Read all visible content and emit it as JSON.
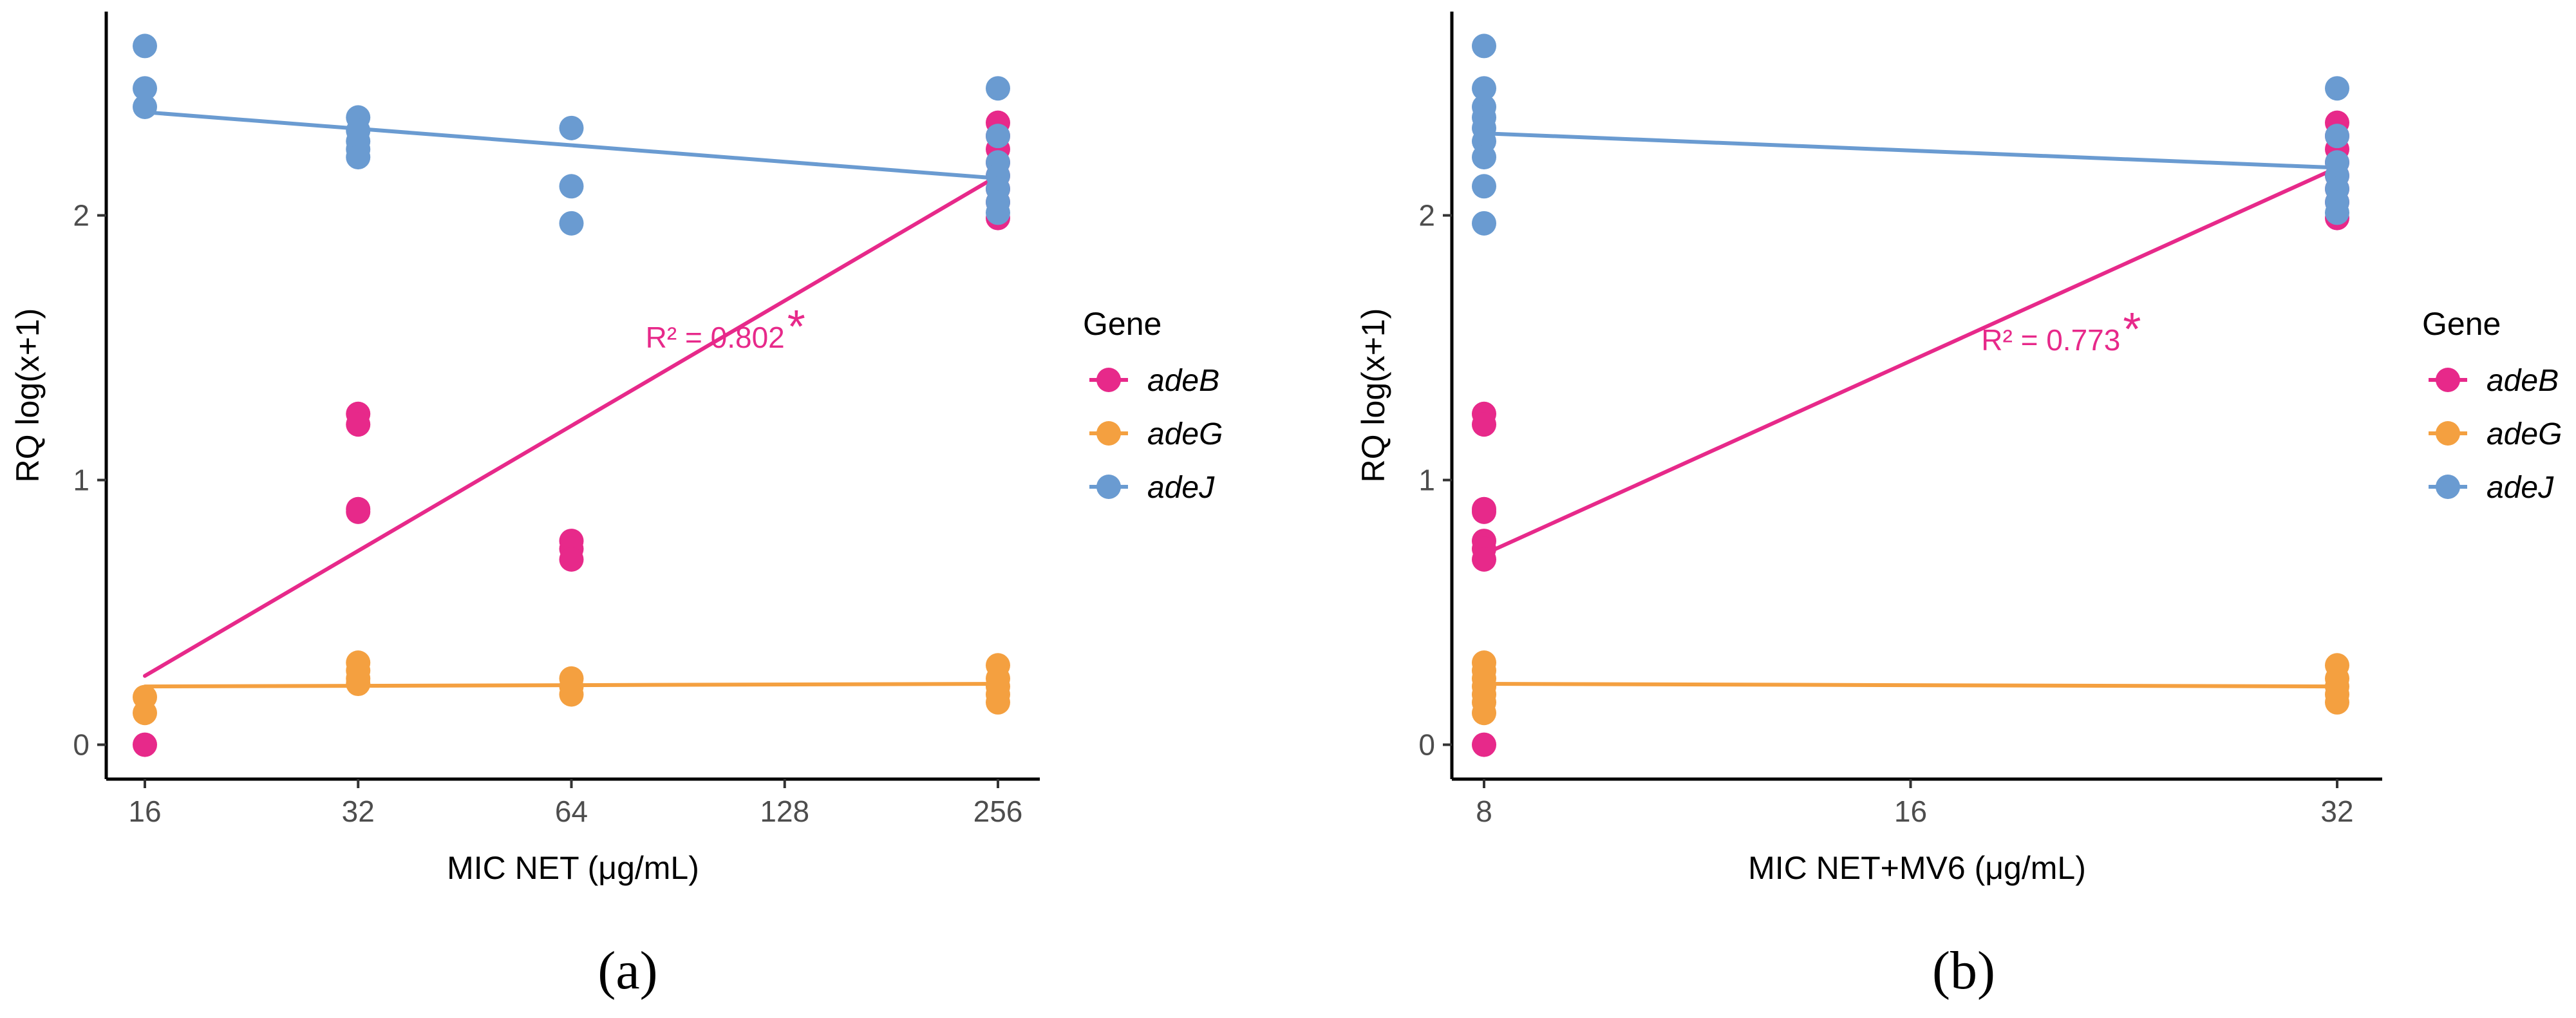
{
  "chart_data": [
    {
      "type": "scatter",
      "panel_label": "(a)",
      "xlabel": "MIC NET (μg/mL)",
      "ylabel": "RQ log(x+1)",
      "x_scale": "log2",
      "xlim": [
        16,
        256
      ],
      "xticks": [
        "16",
        "32",
        "64",
        "128",
        "256"
      ],
      "xtick_values": [
        16,
        32,
        64,
        128,
        256
      ],
      "ylim": [
        -0.13,
        2.77
      ],
      "yticks": [
        "0",
        "1",
        "2"
      ],
      "ytick_values": [
        0,
        1,
        2
      ],
      "legend_title": "Gene",
      "series": [
        {
          "name": "adeB",
          "color": "#E7298A",
          "points": [
            [
              16,
              0.0
            ],
            [
              32,
              1.25
            ],
            [
              32,
              1.21
            ],
            [
              32,
              0.89
            ],
            [
              32,
              0.88
            ],
            [
              64,
              0.77
            ],
            [
              64,
              0.74
            ],
            [
              64,
              0.7
            ],
            [
              256,
              2.35
            ],
            [
              256,
              2.3
            ],
            [
              256,
              2.25
            ],
            [
              256,
              2.2
            ],
            [
              256,
              2.15
            ],
            [
              256,
              2.1
            ],
            [
              256,
              2.05
            ],
            [
              256,
              1.99
            ]
          ],
          "fit": [
            [
              16,
              0.26
            ],
            [
              256,
              2.15
            ]
          ]
        },
        {
          "name": "adeG",
          "color": "#F4A040",
          "points": [
            [
              16,
              0.18
            ],
            [
              16,
              0.12
            ],
            [
              32,
              0.31
            ],
            [
              32,
              0.28
            ],
            [
              32,
              0.25
            ],
            [
              32,
              0.23
            ],
            [
              64,
              0.25
            ],
            [
              64,
              0.22
            ],
            [
              64,
              0.19
            ],
            [
              256,
              0.3
            ],
            [
              256,
              0.25
            ],
            [
              256,
              0.22
            ],
            [
              256,
              0.19
            ],
            [
              256,
              0.16
            ]
          ],
          "fit": [
            [
              16,
              0.22
            ],
            [
              256,
              0.23
            ]
          ]
        },
        {
          "name": "adeJ",
          "color": "#6A9BD1",
          "points": [
            [
              16,
              2.64
            ],
            [
              16,
              2.48
            ],
            [
              16,
              2.41
            ],
            [
              32,
              2.37
            ],
            [
              32,
              2.32
            ],
            [
              32,
              2.28
            ],
            [
              32,
              2.25
            ],
            [
              32,
              2.22
            ],
            [
              64,
              2.33
            ],
            [
              64,
              2.11
            ],
            [
              64,
              1.97
            ],
            [
              256,
              2.48
            ],
            [
              256,
              2.3
            ],
            [
              256,
              2.2
            ],
            [
              256,
              2.15
            ],
            [
              256,
              2.1
            ],
            [
              256,
              2.05
            ],
            [
              256,
              2.01
            ]
          ],
          "fit": [
            [
              16,
              2.39
            ],
            [
              256,
              2.14
            ]
          ]
        }
      ],
      "annotation": {
        "text": "R² = 0.802",
        "star": "*",
        "color": "#E7298A",
        "x": 128,
        "y": 1.5
      }
    },
    {
      "type": "scatter",
      "panel_label": "(b)",
      "xlabel": "MIC NET+MV6 (μg/mL)",
      "ylabel": "RQ log(x+1)",
      "x_scale": "log2",
      "xlim": [
        8,
        32
      ],
      "xticks": [
        "8",
        "16",
        "32"
      ],
      "xtick_values": [
        8,
        16,
        32
      ],
      "ylim": [
        -0.13,
        2.77
      ],
      "yticks": [
        "0",
        "1",
        "2"
      ],
      "ytick_values": [
        0,
        1,
        2
      ],
      "legend_title": "Gene",
      "series": [
        {
          "name": "adeB",
          "color": "#E7298A",
          "points": [
            [
              8,
              1.25
            ],
            [
              8,
              1.21
            ],
            [
              8,
              0.89
            ],
            [
              8,
              0.88
            ],
            [
              8,
              0.77
            ],
            [
              8,
              0.74
            ],
            [
              8,
              0.7
            ],
            [
              8,
              0.0
            ],
            [
              32,
              2.35
            ],
            [
              32,
              2.3
            ],
            [
              32,
              2.25
            ],
            [
              32,
              2.2
            ],
            [
              32,
              2.15
            ],
            [
              32,
              2.1
            ],
            [
              32,
              2.05
            ],
            [
              32,
              1.99
            ]
          ],
          "fit": [
            [
              8,
              0.72
            ],
            [
              32,
              2.18
            ]
          ]
        },
        {
          "name": "adeG",
          "color": "#F4A040",
          "points": [
            [
              8,
              0.31
            ],
            [
              8,
              0.28
            ],
            [
              8,
              0.25
            ],
            [
              8,
              0.22
            ],
            [
              8,
              0.19
            ],
            [
              8,
              0.16
            ],
            [
              8,
              0.12
            ],
            [
              32,
              0.3
            ],
            [
              32,
              0.25
            ],
            [
              32,
              0.22
            ],
            [
              32,
              0.19
            ],
            [
              32,
              0.16
            ]
          ],
          "fit": [
            [
              8,
              0.23
            ],
            [
              32,
              0.22
            ]
          ]
        },
        {
          "name": "adeJ",
          "color": "#6A9BD1",
          "points": [
            [
              8,
              2.64
            ],
            [
              8,
              2.48
            ],
            [
              8,
              2.41
            ],
            [
              8,
              2.37
            ],
            [
              8,
              2.33
            ],
            [
              8,
              2.28
            ],
            [
              8,
              2.22
            ],
            [
              8,
              2.11
            ],
            [
              8,
              1.97
            ],
            [
              32,
              2.48
            ],
            [
              32,
              2.3
            ],
            [
              32,
              2.2
            ],
            [
              32,
              2.15
            ],
            [
              32,
              2.1
            ],
            [
              32,
              2.05
            ],
            [
              32,
              2.01
            ]
          ],
          "fit": [
            [
              8,
              2.31
            ],
            [
              32,
              2.18
            ]
          ]
        }
      ],
      "annotation": {
        "text": "R² = 0.773",
        "star": "*",
        "color": "#E7298A",
        "x": 22.5,
        "y": 1.49
      }
    }
  ]
}
